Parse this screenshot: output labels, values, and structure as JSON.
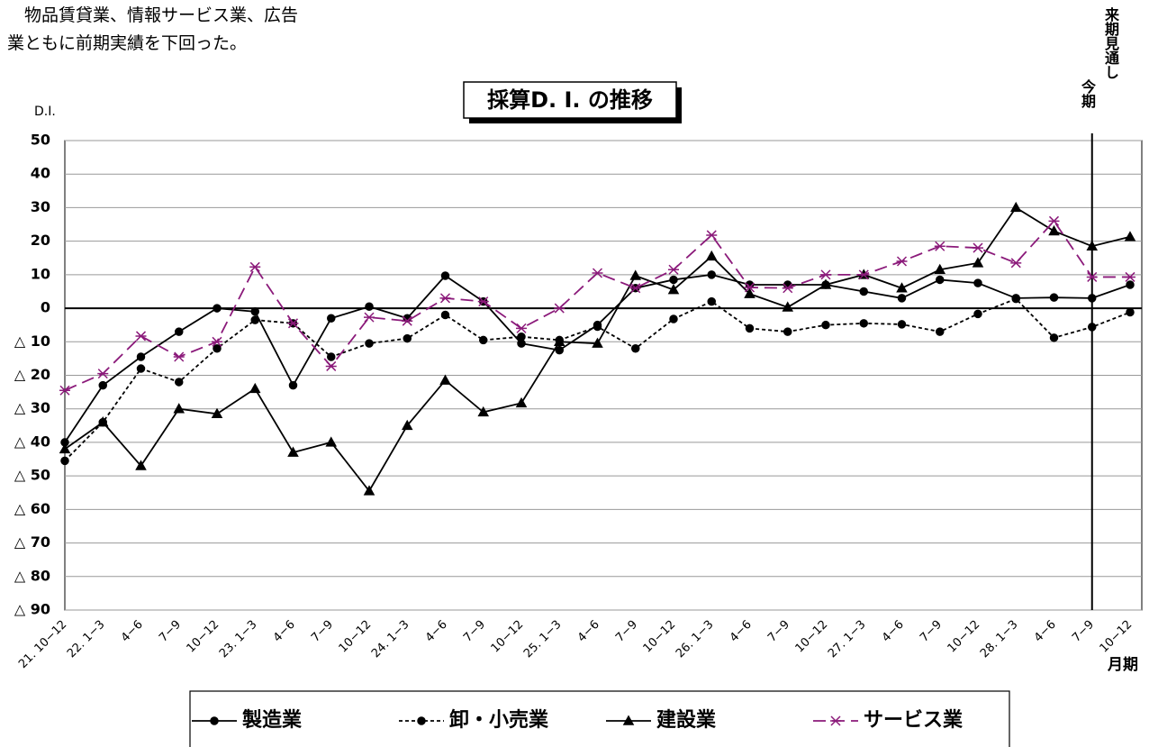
{
  "text": {
    "lines": [
      "　物品賃貸業、情報サービス業、広告",
      "業ともに前期実績を下回った。"
    ]
  },
  "chart_data": {
    "type": "line",
    "title": "採算D. I. の推移",
    "y_label": "D.I.",
    "x_label": "月期",
    "current_period_label": "今期",
    "next_period_label": "来期見通し",
    "categories": [
      "21. 10−12",
      "22. 1−3",
      "4−6",
      "7−9",
      "10−12",
      "23. 1−3",
      "4−6",
      "7−9",
      "10−12",
      "24. 1−3",
      "4−6",
      "7−9",
      "10−12",
      "25. 1−3",
      "4−6",
      "7−9",
      "10−12",
      "26. 1−3",
      "4−6",
      "7−9",
      "10−12",
      "27. 1−3",
      "4−6",
      "7−9",
      "10−12",
      "28. 1−3",
      "4−6",
      "7−9",
      "10−12"
    ],
    "ylim": [
      -90,
      50
    ],
    "yticks": [
      50,
      40,
      30,
      20,
      10,
      0,
      {
        "value": -10,
        "label": "△ 10"
      },
      {
        "value": -20,
        "label": "△ 20"
      },
      {
        "value": -30,
        "label": "△ 30"
      },
      {
        "value": -40,
        "label": "△ 40"
      },
      {
        "value": -50,
        "label": "△ 50"
      },
      {
        "value": -60,
        "label": "△ 60"
      },
      {
        "value": -70,
        "label": "△ 70"
      },
      {
        "value": -80,
        "label": "△ 80"
      },
      {
        "value": -90,
        "label": "△ 90"
      }
    ],
    "grid": true,
    "series": [
      {
        "name": "製造業",
        "color": "#000000",
        "marker": "circle",
        "dash": "solid",
        "values": [
          -40,
          -23,
          -14.5,
          -7,
          0,
          -1,
          -23,
          -3,
          0.5,
          -3,
          9.7,
          2,
          -10.5,
          -12.5,
          -5,
          6,
          8.5,
          10,
          7,
          7,
          7,
          5,
          3,
          8.5,
          7.5,
          3,
          3.2,
          3,
          7
        ]
      },
      {
        "name": "卸・小売業",
        "color": "#000000",
        "marker": "circle",
        "dash": "dashed",
        "values": [
          -45.5,
          -34,
          -18,
          -22,
          -12,
          -3.5,
          -4.5,
          -14.5,
          -10.5,
          -9,
          -2,
          -9.5,
          -8.5,
          -9.5,
          -5.5,
          -12,
          -3.2,
          2,
          -6,
          -7,
          -5,
          -4.5,
          -4.8,
          -7,
          -1.7,
          2.8,
          -8.8,
          -5.6,
          -1.2
        ]
      },
      {
        "name": "建設業",
        "color": "#000000",
        "marker": "triangle",
        "dash": "solid",
        "values": [
          -42,
          -34,
          -47,
          -30,
          -31.5,
          -24,
          -43,
          -40,
          -54.5,
          -35,
          -21.5,
          -31,
          -28.3,
          -10,
          -10.5,
          9.7,
          5.5,
          15.5,
          4.3,
          0.3,
          7,
          10,
          6,
          11.5,
          13.5,
          30,
          23,
          18.5,
          21.3
        ]
      },
      {
        "name": "サービス業",
        "color": "#8b1a7a",
        "marker": "asterisk",
        "dash": "longdash",
        "values": [
          -24.5,
          -19.5,
          -8.3,
          -14.5,
          -10,
          12.3,
          -4.5,
          -17.3,
          -2.7,
          -3.8,
          3,
          2,
          -6,
          0,
          10.5,
          6,
          11.5,
          21.8,
          6.2,
          6,
          10,
          10,
          14,
          18.5,
          18,
          13.5,
          26,
          9.3,
          9.3
        ]
      }
    ]
  }
}
